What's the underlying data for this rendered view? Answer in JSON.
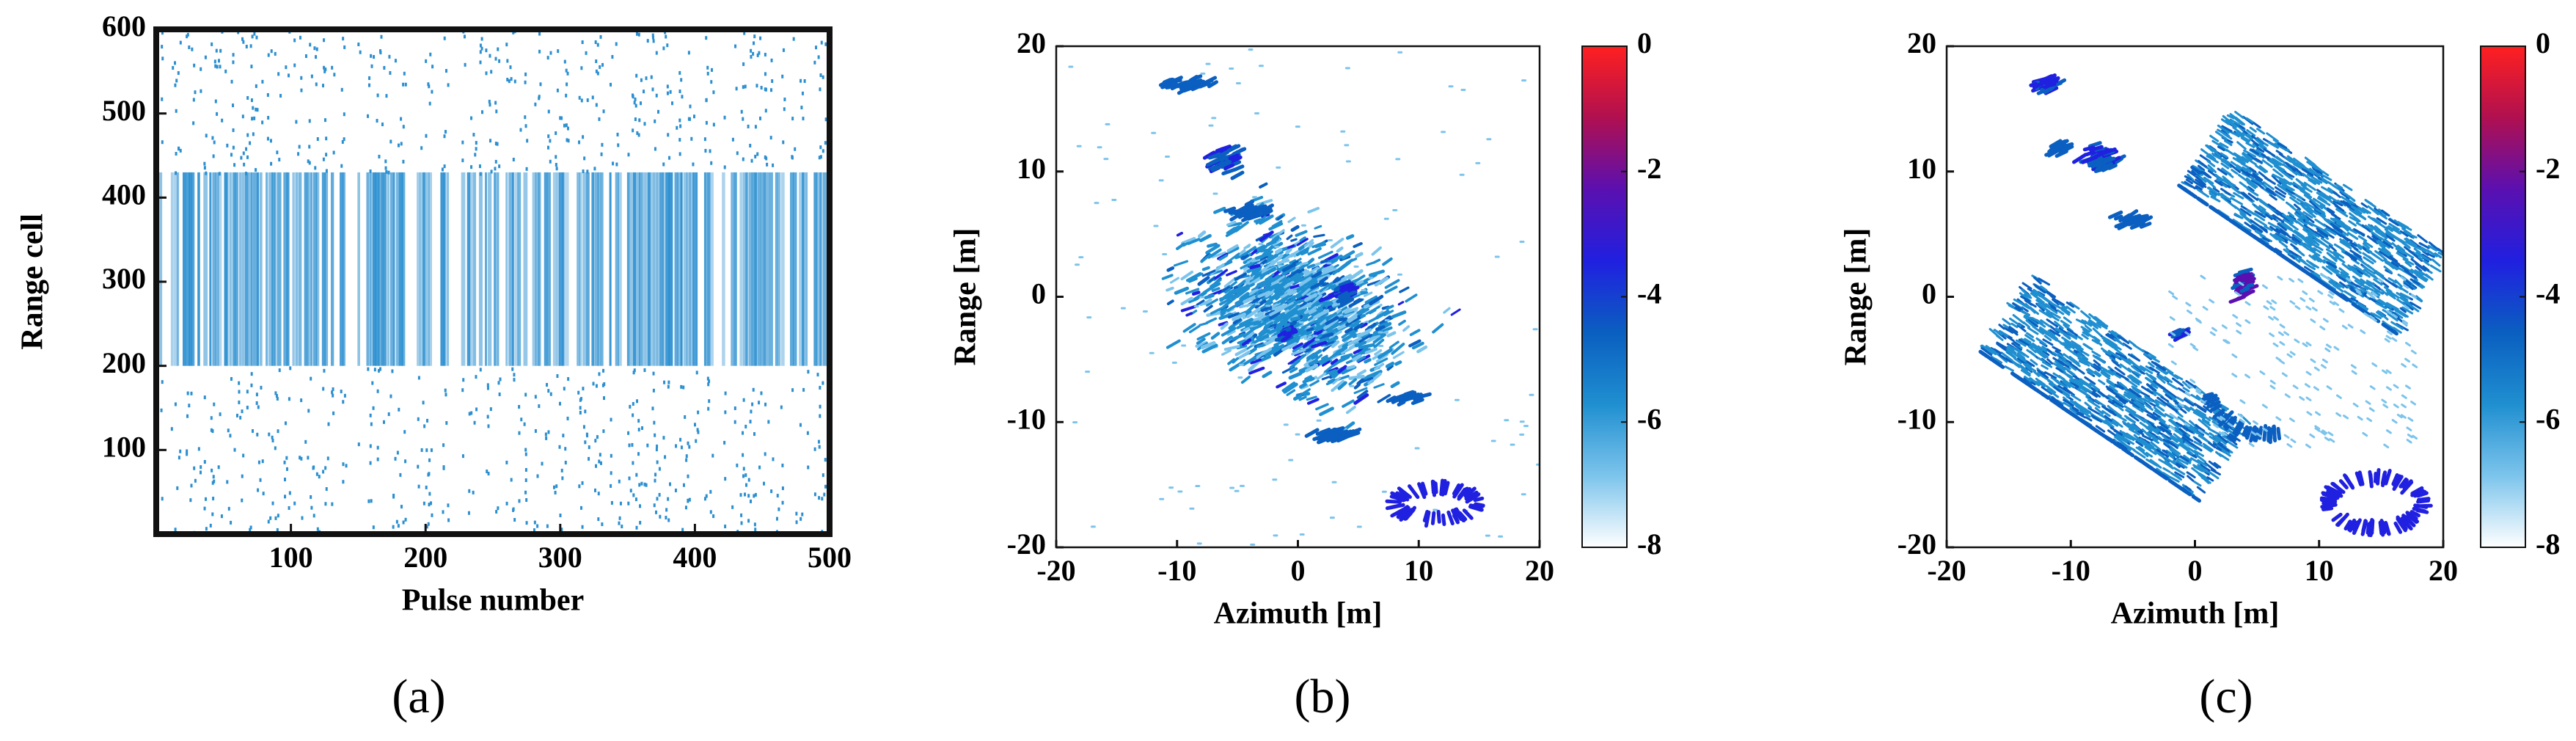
{
  "chart_data": [
    {
      "type": "image",
      "panel_label": "(a)",
      "x_label": "Pulse number",
      "y_label": "Range cell",
      "xlim": [
        0,
        500
      ],
      "ylim": [
        0,
        600
      ],
      "xticks": [
        100,
        200,
        300,
        400,
        500
      ],
      "yticks": [
        100,
        200,
        300,
        400,
        500,
        600
      ],
      "color": "#2b8fd0"
    },
    {
      "type": "image",
      "panel_label": "(b)",
      "x_label": "Azimuth [m]",
      "y_label": "Range [m]",
      "xlim": [
        -20,
        20
      ],
      "ylim": [
        -20,
        20
      ],
      "xticks": [
        -20,
        -10,
        0,
        10,
        20
      ],
      "yticks": [
        -20,
        -10,
        0,
        10,
        20
      ],
      "colorbar": {
        "lim": [
          -8,
          0
        ],
        "ticks": [
          0,
          -2,
          -4,
          -6,
          -8
        ],
        "colors": [
          "#ffffff",
          "#7cc4ec",
          "#1f8fd0",
          "#0a5fc0",
          "#2020e0",
          "#5a10b0",
          "#b01050",
          "#ff2020"
        ]
      }
    },
    {
      "type": "image",
      "panel_label": "(c)",
      "x_label": "Azimuth [m]",
      "y_label": "Range [m]",
      "xlim": [
        -20,
        20
      ],
      "ylim": [
        -20,
        20
      ],
      "xticks": [
        -20,
        -10,
        0,
        10,
        20
      ],
      "yticks": [
        -20,
        -10,
        0,
        10,
        20
      ],
      "colorbar": {
        "lim": [
          -8,
          0
        ],
        "ticks": [
          0,
          -2,
          -4,
          -6,
          -8
        ],
        "colors": [
          "#ffffff",
          "#7cc4ec",
          "#1f8fd0",
          "#0a5fc0",
          "#2020e0",
          "#5a10b0",
          "#b01050",
          "#ff2020"
        ]
      }
    }
  ]
}
